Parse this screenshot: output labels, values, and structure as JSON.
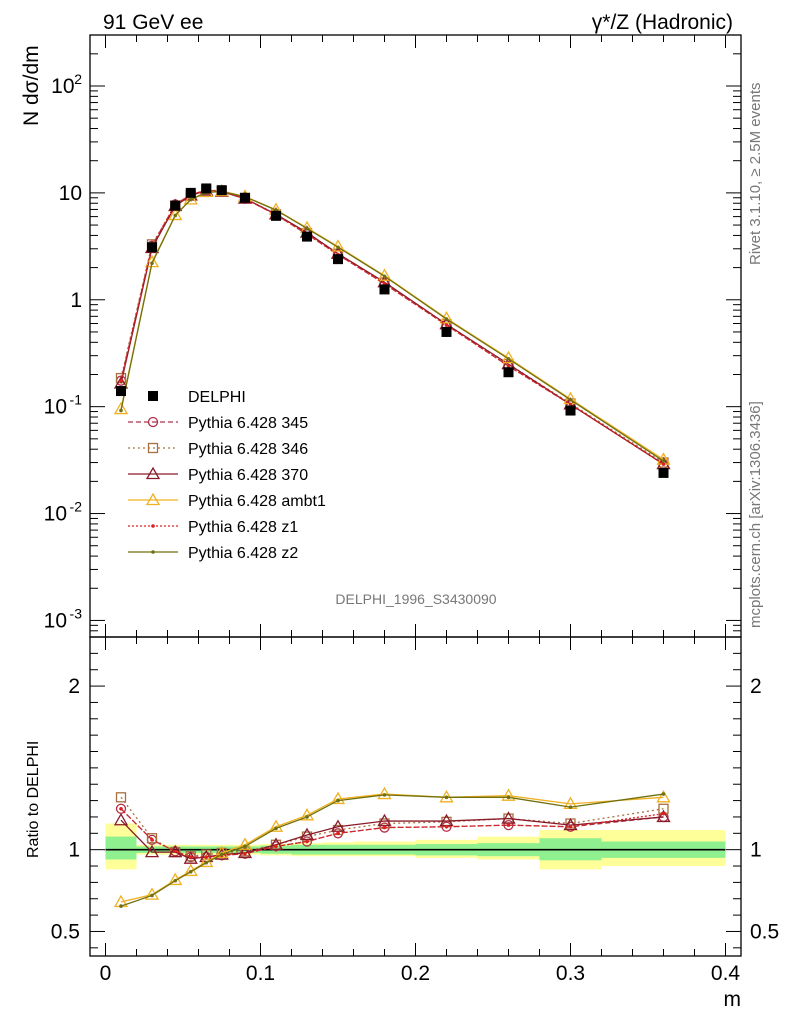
{
  "header": {
    "left": "91 GeV ee",
    "right": "γ*/Z (Hadronic)"
  },
  "side_labels": {
    "rivet": "Rivet 3.1.10, ≥ 2.5M events",
    "mcplots": "mcplots.cern.ch [arXiv:1306.3436]"
  },
  "analysis_tag": "DELPHI_1996_S3430090",
  "chart_data": [
    {
      "type": "line",
      "panel": "main",
      "ylabel": "N dσ/dm",
      "xlabel": "m",
      "xlim": [
        -0.01,
        0.41
      ],
      "ylim": [
        0.0007,
        300
      ],
      "yscale": "log",
      "y_tick_labels": [
        "10^-3",
        "10^-2",
        "10^-1",
        "1",
        "10",
        "10^2"
      ],
      "legend_position": "middle-left",
      "x": [
        0.01,
        0.03,
        0.045,
        0.055,
        0.065,
        0.075,
        0.09,
        0.11,
        0.13,
        0.15,
        0.18,
        0.22,
        0.26,
        0.3,
        0.36
      ],
      "data": {
        "name": "DELPHI",
        "values": [
          0.14,
          3.1,
          7.6,
          10.0,
          11.0,
          10.6,
          9.0,
          6.1,
          3.9,
          2.4,
          1.25,
          0.5,
          0.21,
          0.092,
          0.024
        ]
      },
      "series": [
        {
          "name": "Pythia 6.428 345",
          "color": "#b03048",
          "marker": "circle-open",
          "dash": "5,3",
          "values": [
            0.175,
            3.2,
            7.8,
            9.6,
            10.6,
            10.3,
            8.8,
            6.25,
            4.1,
            2.65,
            1.41,
            0.58,
            0.24,
            0.105,
            0.029
          ]
        },
        {
          "name": "Pythia 6.428 346",
          "color": "#a87040",
          "marker": "square-open",
          "dash": "2,3",
          "values": [
            0.185,
            3.3,
            7.6,
            9.5,
            10.7,
            10.4,
            8.9,
            6.3,
            4.2,
            2.7,
            1.45,
            0.59,
            0.25,
            0.107,
            0.03
          ]
        },
        {
          "name": "Pythia 6.428 370",
          "color": "#8a1a2a",
          "marker": "triangle-open",
          "dash": "",
          "values": [
            0.165,
            3.05,
            7.55,
            9.45,
            10.5,
            10.25,
            8.85,
            6.3,
            4.25,
            2.7,
            1.46,
            0.59,
            0.25,
            0.105,
            0.029
          ]
        },
        {
          "name": "Pythia 6.428 ambt1",
          "color": "#f0b020",
          "marker": "triangle-open",
          "dash": "",
          "values": [
            0.095,
            2.25,
            6.2,
            8.7,
            10.2,
            10.4,
            9.25,
            6.95,
            4.7,
            3.15,
            1.68,
            0.67,
            0.285,
            0.118,
            0.032
          ]
        },
        {
          "name": "Pythia 6.428 z1",
          "color": "#e02020",
          "marker": "dot",
          "dash": "2,2",
          "values": [
            0.175,
            3.2,
            7.8,
            9.6,
            10.6,
            10.3,
            8.8,
            6.25,
            4.1,
            2.65,
            1.41,
            0.58,
            0.24,
            0.105,
            0.029
          ]
        },
        {
          "name": "Pythia 6.428 z2",
          "color": "#707010",
          "marker": "dot",
          "dash": "",
          "values": [
            0.092,
            2.2,
            6.15,
            8.65,
            10.1,
            10.3,
            9.2,
            6.9,
            4.65,
            3.1,
            1.66,
            0.66,
            0.28,
            0.116,
            0.031
          ]
        }
      ]
    },
    {
      "type": "line",
      "panel": "ratio",
      "ylabel": "Ratio to DELPHI",
      "xlabel": "m",
      "xlim": [
        -0.01,
        0.41
      ],
      "ylim": [
        0.35,
        2.3
      ],
      "x_ticks": [
        0,
        0.1,
        0.2,
        0.3,
        0.4
      ],
      "x_tick_labels": [
        "0",
        "0.1",
        "0.2",
        "0.3",
        "0.4"
      ],
      "y_ticks": [
        0.5,
        1,
        2
      ],
      "y_tick_labels": [
        "0.5",
        "1",
        "2"
      ],
      "uncertainty_bands": {
        "bin_edges": [
          0.0,
          0.02,
          0.04,
          0.05,
          0.06,
          0.07,
          0.08,
          0.1,
          0.12,
          0.14,
          0.16,
          0.2,
          0.24,
          0.28,
          0.32,
          0.4
        ],
        "stat": [
          [
            0.94,
            1.08
          ],
          [
            0.98,
            1.02
          ],
          [
            0.98,
            1.02
          ],
          [
            0.98,
            1.02
          ],
          [
            0.98,
            1.02
          ],
          [
            0.98,
            1.02
          ],
          [
            0.98,
            1.02
          ],
          [
            0.975,
            1.025
          ],
          [
            0.97,
            1.03
          ],
          [
            0.97,
            1.03
          ],
          [
            0.97,
            1.03
          ],
          [
            0.965,
            1.035
          ],
          [
            0.96,
            1.04
          ],
          [
            0.935,
            1.07
          ],
          [
            0.95,
            1.05
          ]
        ],
        "total": [
          [
            0.88,
            1.16
          ],
          [
            0.97,
            1.03
          ],
          [
            0.97,
            1.03
          ],
          [
            0.97,
            1.03
          ],
          [
            0.97,
            1.03
          ],
          [
            0.97,
            1.03
          ],
          [
            0.97,
            1.03
          ],
          [
            0.965,
            1.035
          ],
          [
            0.96,
            1.04
          ],
          [
            0.96,
            1.045
          ],
          [
            0.96,
            1.05
          ],
          [
            0.95,
            1.06
          ],
          [
            0.94,
            1.08
          ],
          [
            0.88,
            1.12
          ],
          [
            0.9,
            1.12
          ]
        ]
      },
      "x": [
        0.01,
        0.03,
        0.045,
        0.055,
        0.065,
        0.075,
        0.09,
        0.11,
        0.13,
        0.15,
        0.18,
        0.22,
        0.26,
        0.3,
        0.36
      ],
      "series": [
        {
          "name": "Pythia 6.428 345",
          "values": [
            1.25,
            1.06,
            0.99,
            0.955,
            0.955,
            0.965,
            0.975,
            1.02,
            1.05,
            1.1,
            1.135,
            1.14,
            1.15,
            1.14,
            1.2
          ]
        },
        {
          "name": "Pythia 6.428 346",
          "values": [
            1.32,
            1.07,
            0.985,
            0.96,
            0.97,
            0.98,
            0.99,
            1.03,
            1.08,
            1.12,
            1.16,
            1.17,
            1.19,
            1.16,
            1.25
          ]
        },
        {
          "name": "Pythia 6.428 370",
          "values": [
            1.18,
            0.985,
            0.985,
            0.945,
            0.955,
            0.97,
            0.98,
            1.03,
            1.09,
            1.14,
            1.175,
            1.175,
            1.19,
            1.15,
            1.2
          ]
        },
        {
          "name": "Pythia 6.428 ambt1",
          "values": [
            0.68,
            0.725,
            0.815,
            0.87,
            0.925,
            0.98,
            1.03,
            1.14,
            1.21,
            1.31,
            1.34,
            1.32,
            1.33,
            1.28,
            1.32
          ]
        },
        {
          "name": "Pythia 6.428 z1",
          "values": [
            1.25,
            1.06,
            0.99,
            0.955,
            0.955,
            0.965,
            0.975,
            1.02,
            1.05,
            1.1,
            1.135,
            1.14,
            1.15,
            1.14,
            1.22
          ]
        },
        {
          "name": "Pythia 6.428 z2",
          "values": [
            0.655,
            0.72,
            0.81,
            0.865,
            0.92,
            0.97,
            1.02,
            1.13,
            1.2,
            1.3,
            1.335,
            1.32,
            1.32,
            1.26,
            1.34
          ]
        }
      ]
    }
  ]
}
